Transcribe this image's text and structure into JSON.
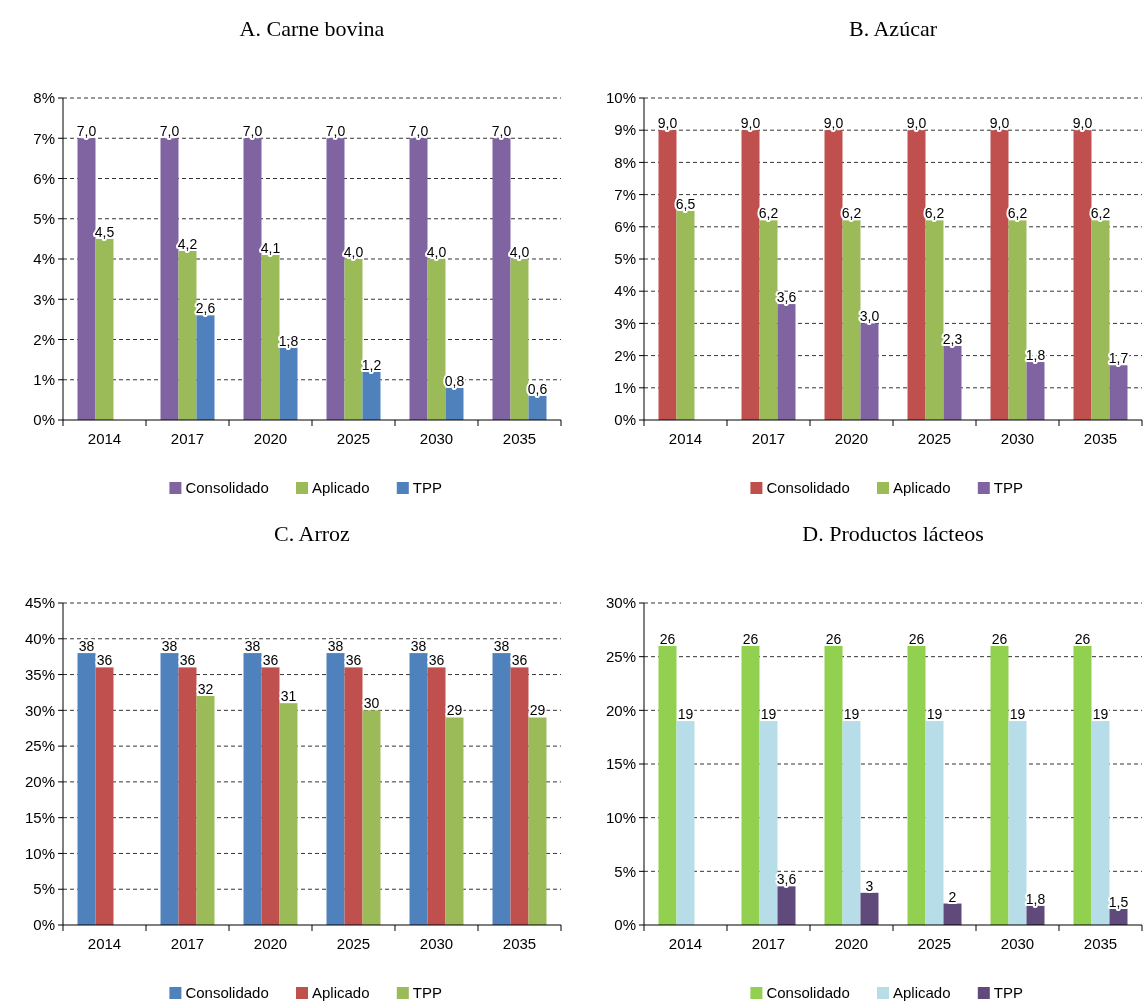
{
  "chart_data": [
    {
      "type": "bar",
      "title": "A. Carne bovina",
      "categories": [
        "2014",
        "2017",
        "2020",
        "2025",
        "2030",
        "2035"
      ],
      "ylim": [
        0,
        8
      ],
      "yticks": [
        {
          "value": 0,
          "label": "0%"
        },
        {
          "value": 1,
          "label": "1%"
        },
        {
          "value": 2,
          "label": "2%"
        },
        {
          "value": 3,
          "label": "3%"
        },
        {
          "value": 4,
          "label": "4%"
        },
        {
          "value": 5,
          "label": "5%"
        },
        {
          "value": 6,
          "label": "6%"
        },
        {
          "value": 7,
          "label": "7%"
        },
        {
          "value": 8,
          "label": "8%"
        }
      ],
      "grid": "y",
      "legend": "bottom",
      "series": [
        {
          "name": "Consolidado",
          "color": "#8064a2",
          "values": [
            7.0,
            7.0,
            7.0,
            7.0,
            7.0,
            7.0
          ],
          "value_labels": [
            "7,0",
            "7,0",
            "7,0",
            "7,0",
            "7,0",
            "7,0"
          ]
        },
        {
          "name": "Aplicado",
          "color": "#9bbb59",
          "values": [
            4.5,
            4.2,
            4.1,
            4.0,
            4.0,
            4.0
          ],
          "value_labels": [
            "4,5",
            "4,2",
            "4,1",
            "4,0",
            "4,0",
            "4,0"
          ]
        },
        {
          "name": "TPP",
          "color": "#4f81bd",
          "values": [
            null,
            2.6,
            1.8,
            1.2,
            0.8,
            0.6
          ],
          "value_labels": [
            null,
            "2,6",
            "1,8",
            "1,2",
            "0,8",
            "0,6"
          ]
        }
      ]
    },
    {
      "type": "bar",
      "title": "B. Azúcar",
      "categories": [
        "2014",
        "2017",
        "2020",
        "2025",
        "2030",
        "2035"
      ],
      "ylim": [
        0,
        10
      ],
      "yticks": [
        {
          "value": 0,
          "label": "0%"
        },
        {
          "value": 1,
          "label": "1%"
        },
        {
          "value": 2,
          "label": "2%"
        },
        {
          "value": 3,
          "label": "3%"
        },
        {
          "value": 4,
          "label": "4%"
        },
        {
          "value": 5,
          "label": "5%"
        },
        {
          "value": 6,
          "label": "6%"
        },
        {
          "value": 7,
          "label": "7%"
        },
        {
          "value": 8,
          "label": "8%"
        },
        {
          "value": 9,
          "label": "9%"
        },
        {
          "value": 10,
          "label": "10%"
        }
      ],
      "grid": "y",
      "legend": "bottom",
      "series": [
        {
          "name": "Consolidado",
          "color": "#c0504d",
          "values": [
            9.0,
            9.0,
            9.0,
            9.0,
            9.0,
            9.0
          ],
          "value_labels": [
            "9,0",
            "9,0",
            "9,0",
            "9,0",
            "9,0",
            "9,0"
          ]
        },
        {
          "name": "Aplicado",
          "color": "#9bbb59",
          "values": [
            6.5,
            6.2,
            6.2,
            6.2,
            6.2,
            6.2
          ],
          "value_labels": [
            "6,5",
            "6,2",
            "6,2",
            "6,2",
            "6,2",
            "6,2"
          ]
        },
        {
          "name": "TPP",
          "color": "#8064a2",
          "values": [
            null,
            3.6,
            3.0,
            2.3,
            1.8,
            1.7
          ],
          "value_labels": [
            null,
            "3,6",
            "3,0",
            "2,3",
            "1,8",
            "1,7"
          ]
        }
      ]
    },
    {
      "type": "bar",
      "title": "C. Arroz",
      "categories": [
        "2014",
        "2017",
        "2020",
        "2025",
        "2030",
        "2035"
      ],
      "ylim": [
        0,
        45
      ],
      "yticks": [
        {
          "value": 0,
          "label": "0%"
        },
        {
          "value": 5,
          "label": "5%"
        },
        {
          "value": 10,
          "label": "10%"
        },
        {
          "value": 15,
          "label": "15%"
        },
        {
          "value": 20,
          "label": "20%"
        },
        {
          "value": 25,
          "label": "25%"
        },
        {
          "value": 30,
          "label": "30%"
        },
        {
          "value": 35,
          "label": "35%"
        },
        {
          "value": 40,
          "label": "40%"
        },
        {
          "value": 45,
          "label": "45%"
        }
      ],
      "grid": "y",
      "legend": "bottom",
      "series": [
        {
          "name": "Consolidado",
          "color": "#4f81bd",
          "values": [
            38,
            38,
            38,
            38,
            38,
            38
          ],
          "value_labels": [
            "38",
            "38",
            "38",
            "38",
            "38",
            "38"
          ]
        },
        {
          "name": "Aplicado",
          "color": "#c0504d",
          "values": [
            36,
            36,
            36,
            36,
            36,
            36
          ],
          "value_labels": [
            "36",
            "36",
            "36",
            "36",
            "36",
            "36"
          ]
        },
        {
          "name": "TPP",
          "color": "#9bbb59",
          "values": [
            null,
            32,
            31,
            30,
            29,
            29
          ],
          "value_labels": [
            null,
            "32",
            "31",
            "30",
            "29",
            "29"
          ]
        }
      ]
    },
    {
      "type": "bar",
      "title": "D. Productos lácteos",
      "categories": [
        "2014",
        "2017",
        "2020",
        "2025",
        "2030",
        "2035"
      ],
      "ylim": [
        0,
        30
      ],
      "yticks": [
        {
          "value": 0,
          "label": "0%"
        },
        {
          "value": 5,
          "label": "5%"
        },
        {
          "value": 10,
          "label": "10%"
        },
        {
          "value": 15,
          "label": "15%"
        },
        {
          "value": 20,
          "label": "20%"
        },
        {
          "value": 25,
          "label": "25%"
        },
        {
          "value": 30,
          "label": "30%"
        }
      ],
      "grid": "y",
      "legend": "bottom",
      "series": [
        {
          "name": "Consolidado",
          "color": "#92d050",
          "values": [
            26,
            26,
            26,
            26,
            26,
            26
          ],
          "value_labels": [
            "26",
            "26",
            "26",
            "26",
            "26",
            "26"
          ]
        },
        {
          "name": "Aplicado",
          "color": "#b7dee8",
          "values": [
            19,
            19,
            19,
            19,
            19,
            19
          ],
          "value_labels": [
            "19",
            "19",
            "19",
            "19",
            "19",
            "19"
          ]
        },
        {
          "name": "TPP",
          "color": "#604a7b",
          "values": [
            null,
            3.6,
            3,
            2,
            1.8,
            1.5
          ],
          "value_labels": [
            null,
            "3,6",
            "3",
            "2",
            "1,8",
            "1,5"
          ]
        }
      ]
    }
  ]
}
